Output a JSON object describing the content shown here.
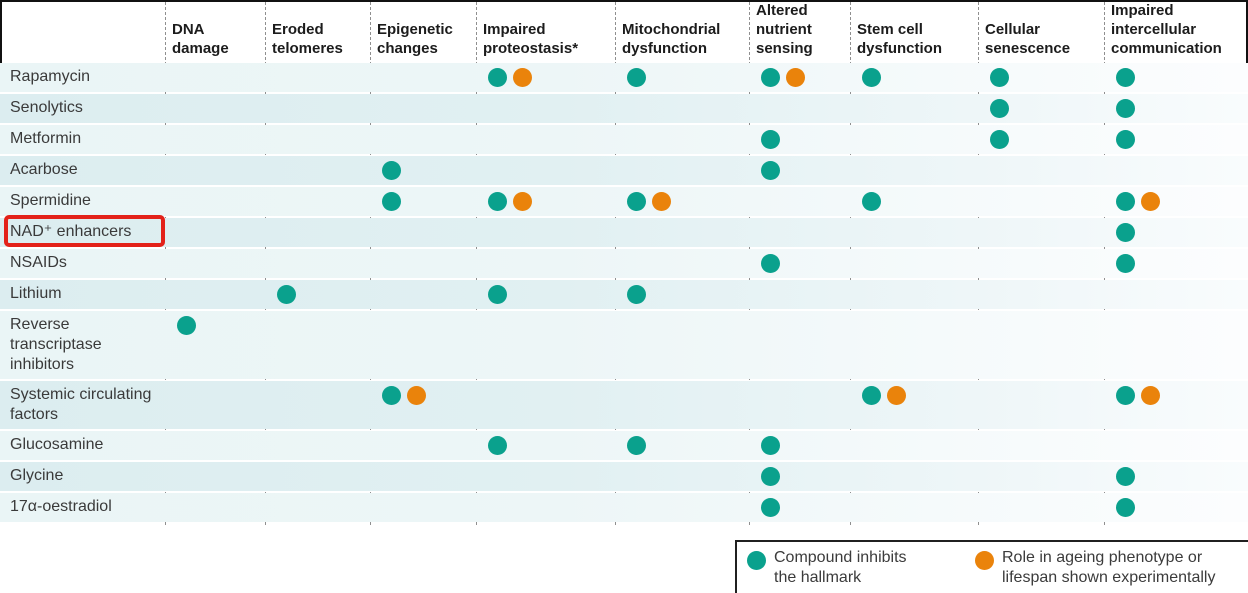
{
  "chart_data": {
    "type": "table",
    "description": "Matrix of compounds versus hallmarks of ageing; marks per cell",
    "columns": [
      "DNA damage",
      "Eroded telomeres",
      "Epigenetic changes",
      "Impaired proteostasis*",
      "Mitochondrial dysfunction",
      "Altered nutrient sensing",
      "Stem cell dysfunction",
      "Cellular senescence",
      "Impaired intercellular communication"
    ],
    "rows": [
      {
        "label": "Rapamycin",
        "highlighted": false,
        "marks": [
          [],
          [],
          [],
          [
            "inhibits",
            "experimental"
          ],
          [
            "inhibits"
          ],
          [
            "inhibits",
            "experimental"
          ],
          [
            "inhibits"
          ],
          [
            "inhibits"
          ],
          [
            "inhibits"
          ]
        ]
      },
      {
        "label": "Senolytics",
        "highlighted": false,
        "marks": [
          [],
          [],
          [],
          [],
          [],
          [],
          [],
          [
            "inhibits"
          ],
          [
            "inhibits"
          ]
        ]
      },
      {
        "label": "Metformin",
        "highlighted": false,
        "marks": [
          [],
          [],
          [],
          [],
          [],
          [
            "inhibits"
          ],
          [],
          [
            "inhibits"
          ],
          [
            "inhibits"
          ]
        ]
      },
      {
        "label": "Acarbose",
        "highlighted": false,
        "marks": [
          [],
          [],
          [
            "inhibits"
          ],
          [],
          [],
          [
            "inhibits"
          ],
          [],
          [],
          []
        ]
      },
      {
        "label": "Spermidine",
        "highlighted": false,
        "marks": [
          [],
          [],
          [
            "inhibits"
          ],
          [
            "inhibits",
            "experimental"
          ],
          [
            "inhibits",
            "experimental"
          ],
          [],
          [
            "inhibits"
          ],
          [],
          [
            "inhibits",
            "experimental"
          ]
        ]
      },
      {
        "label": "NAD⁺ enhancers",
        "highlighted": true,
        "marks": [
          [],
          [],
          [],
          [],
          [],
          [],
          [],
          [],
          [
            "inhibits"
          ]
        ]
      },
      {
        "label": "NSAIDs",
        "highlighted": false,
        "marks": [
          [],
          [],
          [],
          [],
          [],
          [
            "inhibits"
          ],
          [],
          [],
          [
            "inhibits"
          ]
        ]
      },
      {
        "label": "Lithium",
        "highlighted": false,
        "marks": [
          [],
          [
            "inhibits"
          ],
          [],
          [
            "inhibits"
          ],
          [
            "inhibits"
          ],
          [],
          [],
          [],
          []
        ]
      },
      {
        "label": "Reverse transcriptase inhibitors",
        "highlighted": false,
        "marks": [
          [
            "inhibits"
          ],
          [],
          [],
          [],
          [],
          [],
          [],
          [],
          []
        ]
      },
      {
        "label": "Systemic circulating factors",
        "highlighted": false,
        "marks": [
          [],
          [],
          [
            "inhibits",
            "experimental"
          ],
          [],
          [],
          [],
          [
            "inhibits",
            "experimental"
          ],
          [],
          [
            "inhibits",
            "experimental"
          ]
        ]
      },
      {
        "label": "Glucosamine",
        "highlighted": false,
        "marks": [
          [],
          [],
          [],
          [
            "inhibits"
          ],
          [
            "inhibits"
          ],
          [
            "inhibits"
          ],
          [],
          [],
          []
        ]
      },
      {
        "label": "Glycine",
        "highlighted": false,
        "marks": [
          [],
          [],
          [],
          [],
          [],
          [
            "inhibits"
          ],
          [],
          [],
          [
            "inhibits"
          ]
        ]
      },
      {
        "label": "17α-oestradiol",
        "highlighted": false,
        "marks": [
          [],
          [],
          [],
          [],
          [],
          [
            "inhibits"
          ],
          [],
          [],
          [
            "inhibits"
          ]
        ]
      }
    ],
    "legend_position": "bottom-right",
    "grid": "dashed-column-separators"
  },
  "legend": {
    "items": [
      {
        "type": "inhibits",
        "color": "#0aa18d",
        "label": "Compound inhibits the hallmark"
      },
      {
        "type": "experimental",
        "color": "#ea830b",
        "label": "Role in ageing phenotype or lifespan shown experimentally"
      }
    ]
  },
  "colors": {
    "inhibits": "#0aa18d",
    "experimental": "#ea830b",
    "highlight_box": "#e32119",
    "row_band_dark": "#dcedf0",
    "row_band_light": "#eaf5f6"
  },
  "annotations": {
    "highlighted_row": "NAD⁺ enhancers"
  }
}
